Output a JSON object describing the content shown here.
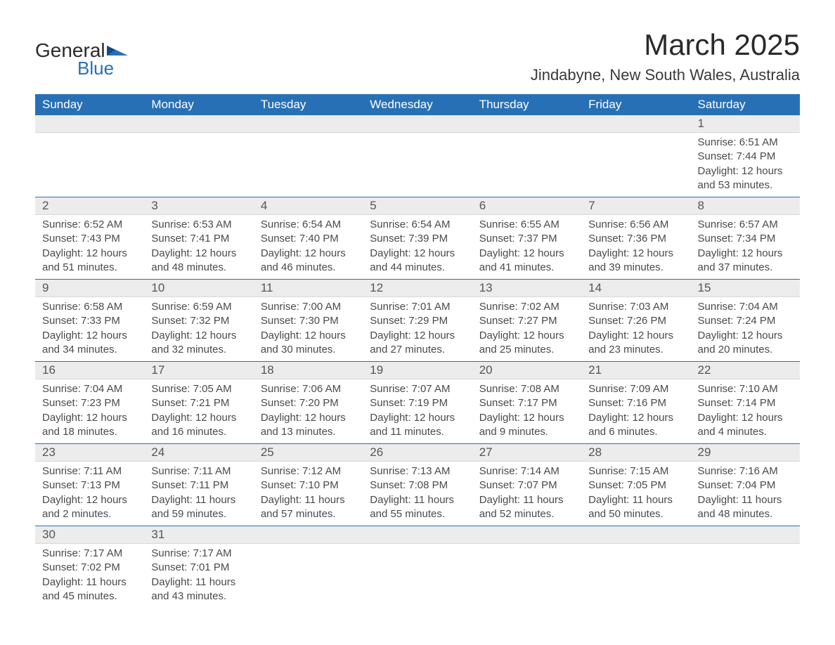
{
  "colors": {
    "header_bg": "#2770b5",
    "header_text": "#ffffff",
    "daynum_bg": "#ececec",
    "row_border": "#2770b5",
    "text": "#4a4a4a"
  },
  "typography": {
    "title_fontsize": 42,
    "location_fontsize": 22,
    "header_fontsize": 17,
    "daynum_fontsize": 17,
    "detail_fontsize": 15
  },
  "logo": {
    "general": "General",
    "blue": "Blue"
  },
  "title": "March 2025",
  "location": "Jindabyne, New South Wales, Australia",
  "weekdays": [
    "Sunday",
    "Monday",
    "Tuesday",
    "Wednesday",
    "Thursday",
    "Friday",
    "Saturday"
  ],
  "weeks": [
    {
      "nums": [
        "",
        "",
        "",
        "",
        "",
        "",
        "1"
      ],
      "cells": [
        "",
        "",
        "",
        "",
        "",
        "",
        "Sunrise: 6:51 AM\nSunset: 7:44 PM\nDaylight: 12 hours and 53 minutes."
      ]
    },
    {
      "nums": [
        "2",
        "3",
        "4",
        "5",
        "6",
        "7",
        "8"
      ],
      "cells": [
        "Sunrise: 6:52 AM\nSunset: 7:43 PM\nDaylight: 12 hours and 51 minutes.",
        "Sunrise: 6:53 AM\nSunset: 7:41 PM\nDaylight: 12 hours and 48 minutes.",
        "Sunrise: 6:54 AM\nSunset: 7:40 PM\nDaylight: 12 hours and 46 minutes.",
        "Sunrise: 6:54 AM\nSunset: 7:39 PM\nDaylight: 12 hours and 44 minutes.",
        "Sunrise: 6:55 AM\nSunset: 7:37 PM\nDaylight: 12 hours and 41 minutes.",
        "Sunrise: 6:56 AM\nSunset: 7:36 PM\nDaylight: 12 hours and 39 minutes.",
        "Sunrise: 6:57 AM\nSunset: 7:34 PM\nDaylight: 12 hours and 37 minutes."
      ]
    },
    {
      "nums": [
        "9",
        "10",
        "11",
        "12",
        "13",
        "14",
        "15"
      ],
      "cells": [
        "Sunrise: 6:58 AM\nSunset: 7:33 PM\nDaylight: 12 hours and 34 minutes.",
        "Sunrise: 6:59 AM\nSunset: 7:32 PM\nDaylight: 12 hours and 32 minutes.",
        "Sunrise: 7:00 AM\nSunset: 7:30 PM\nDaylight: 12 hours and 30 minutes.",
        "Sunrise: 7:01 AM\nSunset: 7:29 PM\nDaylight: 12 hours and 27 minutes.",
        "Sunrise: 7:02 AM\nSunset: 7:27 PM\nDaylight: 12 hours and 25 minutes.",
        "Sunrise: 7:03 AM\nSunset: 7:26 PM\nDaylight: 12 hours and 23 minutes.",
        "Sunrise: 7:04 AM\nSunset: 7:24 PM\nDaylight: 12 hours and 20 minutes."
      ]
    },
    {
      "nums": [
        "16",
        "17",
        "18",
        "19",
        "20",
        "21",
        "22"
      ],
      "cells": [
        "Sunrise: 7:04 AM\nSunset: 7:23 PM\nDaylight: 12 hours and 18 minutes.",
        "Sunrise: 7:05 AM\nSunset: 7:21 PM\nDaylight: 12 hours and 16 minutes.",
        "Sunrise: 7:06 AM\nSunset: 7:20 PM\nDaylight: 12 hours and 13 minutes.",
        "Sunrise: 7:07 AM\nSunset: 7:19 PM\nDaylight: 12 hours and 11 minutes.",
        "Sunrise: 7:08 AM\nSunset: 7:17 PM\nDaylight: 12 hours and 9 minutes.",
        "Sunrise: 7:09 AM\nSunset: 7:16 PM\nDaylight: 12 hours and 6 minutes.",
        "Sunrise: 7:10 AM\nSunset: 7:14 PM\nDaylight: 12 hours and 4 minutes."
      ]
    },
    {
      "nums": [
        "23",
        "24",
        "25",
        "26",
        "27",
        "28",
        "29"
      ],
      "cells": [
        "Sunrise: 7:11 AM\nSunset: 7:13 PM\nDaylight: 12 hours and 2 minutes.",
        "Sunrise: 7:11 AM\nSunset: 7:11 PM\nDaylight: 11 hours and 59 minutes.",
        "Sunrise: 7:12 AM\nSunset: 7:10 PM\nDaylight: 11 hours and 57 minutes.",
        "Sunrise: 7:13 AM\nSunset: 7:08 PM\nDaylight: 11 hours and 55 minutes.",
        "Sunrise: 7:14 AM\nSunset: 7:07 PM\nDaylight: 11 hours and 52 minutes.",
        "Sunrise: 7:15 AM\nSunset: 7:05 PM\nDaylight: 11 hours and 50 minutes.",
        "Sunrise: 7:16 AM\nSunset: 7:04 PM\nDaylight: 11 hours and 48 minutes."
      ]
    },
    {
      "nums": [
        "30",
        "31",
        "",
        "",
        "",
        "",
        ""
      ],
      "cells": [
        "Sunrise: 7:17 AM\nSunset: 7:02 PM\nDaylight: 11 hours and 45 minutes.",
        "Sunrise: 7:17 AM\nSunset: 7:01 PM\nDaylight: 11 hours and 43 minutes.",
        "",
        "",
        "",
        "",
        ""
      ]
    }
  ]
}
